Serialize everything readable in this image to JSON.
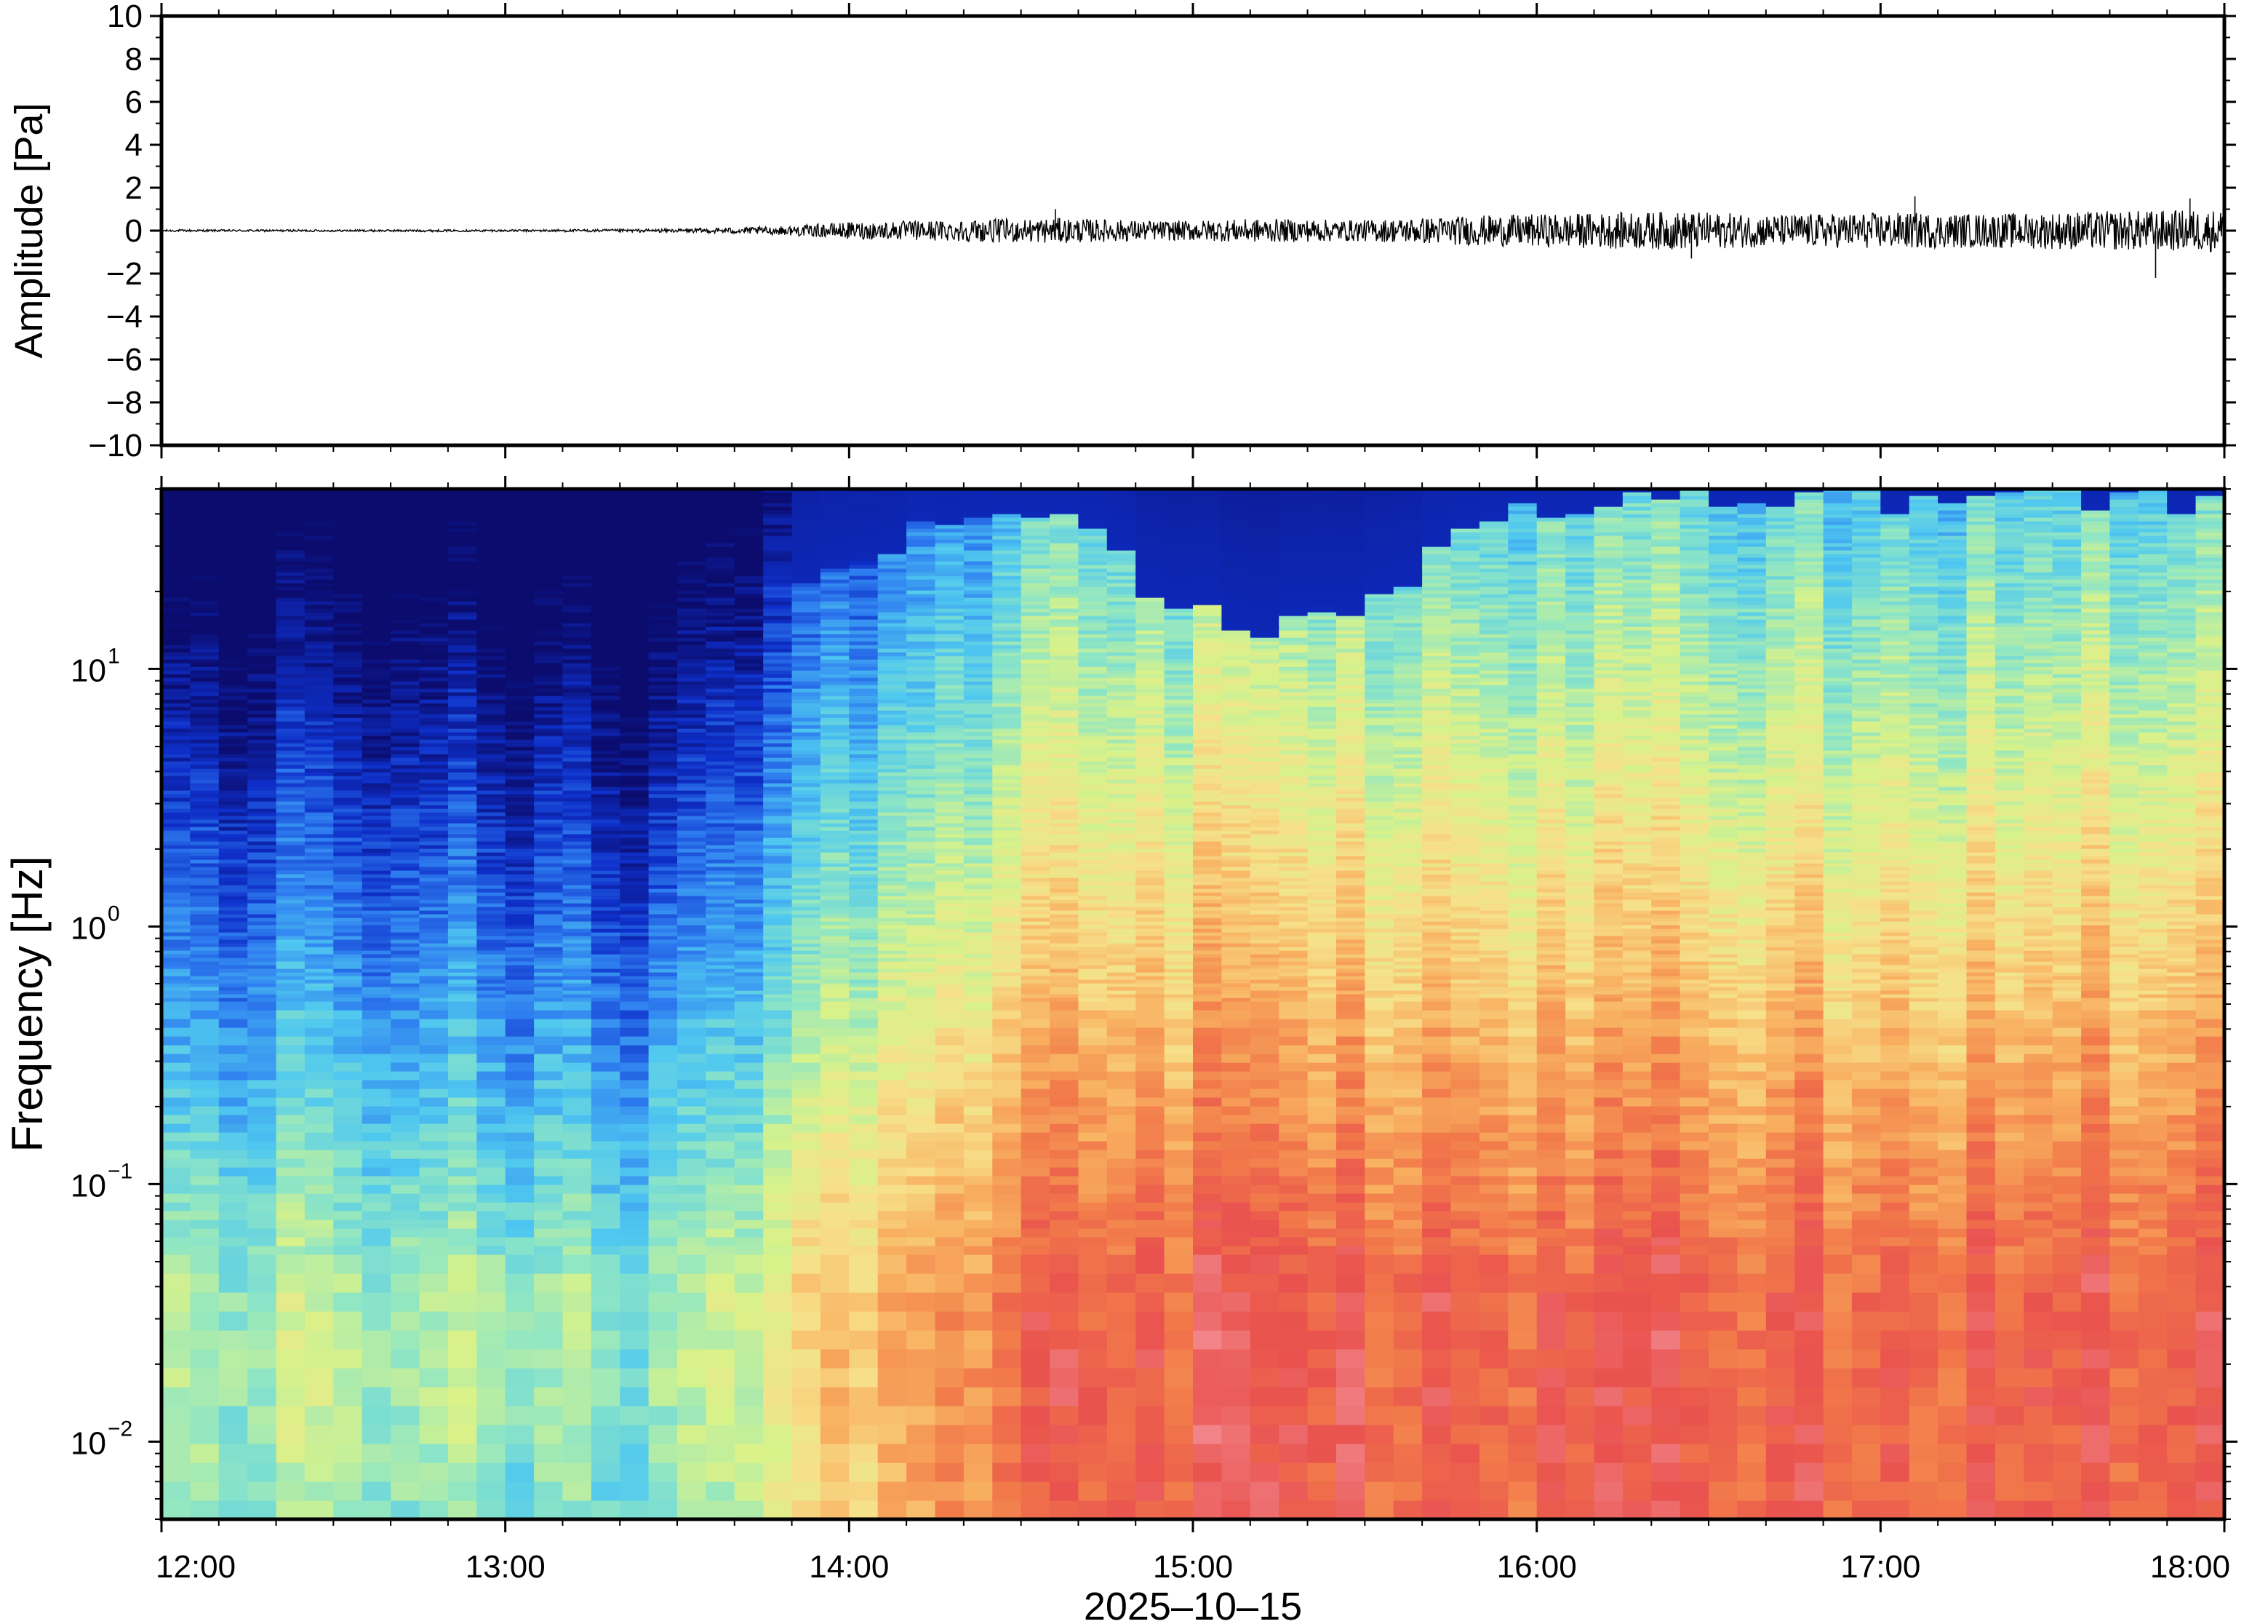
{
  "chart_data": [
    {
      "type": "line",
      "panel": "waveform",
      "ylabel": "Amplitude [Pa]",
      "ylim": [
        -10,
        10
      ],
      "yticks": [
        10,
        8,
        6,
        4,
        2,
        0,
        -2,
        -4,
        -6,
        -8,
        -10
      ],
      "yticklabels": [
        "10",
        "8",
        "6",
        "4",
        "2",
        "0",
        "−2",
        "−4",
        "−6",
        "−8",
        "−10"
      ],
      "xlim_hours": [
        12,
        18
      ],
      "grid": false,
      "series_color": "#000000",
      "envelope": {
        "hours": [
          12.0,
          12.5,
          13.0,
          13.5,
          13.8,
          14.0,
          14.3,
          14.6,
          14.9,
          15.2,
          15.5,
          15.8,
          16.1,
          16.4,
          16.7,
          17.0,
          17.3,
          17.6,
          18.0
        ],
        "amplitude_pa": [
          0.05,
          0.05,
          0.05,
          0.08,
          0.2,
          0.4,
          0.5,
          0.6,
          0.45,
          0.55,
          0.5,
          0.7,
          0.8,
          0.9,
          0.75,
          0.85,
          0.8,
          0.9,
          1.0
        ]
      },
      "spikes": [
        {
          "hour": 14.6,
          "amplitude_pa": 1.0
        },
        {
          "hour": 16.45,
          "amplitude_pa": -1.3
        },
        {
          "hour": 17.1,
          "amplitude_pa": 1.6
        },
        {
          "hour": 17.8,
          "amplitude_pa": -2.2
        },
        {
          "hour": 17.9,
          "amplitude_pa": 1.5
        }
      ]
    },
    {
      "type": "heatmap",
      "panel": "spectrogram",
      "ylabel": "Frequency [Hz]",
      "xlabel": "2025–10–15",
      "yscale": "log",
      "ylim_hz": [
        0.005,
        50
      ],
      "yticks": [
        {
          "value_hz": 10,
          "base": "10",
          "exp": "1"
        },
        {
          "value_hz": 1,
          "base": "10",
          "exp": "0"
        },
        {
          "value_hz": 0.1,
          "base": "10",
          "exp": "−1"
        },
        {
          "value_hz": 0.01,
          "base": "10",
          "exp": "−2"
        }
      ],
      "xticklabels": [
        "12:00",
        "13:00",
        "14:00",
        "15:00",
        "16:00",
        "17:00",
        "18:00"
      ],
      "colormap": [
        "#0b0c6e",
        "#0e2fc9",
        "#2f7ff0",
        "#4fc8f0",
        "#8fe6c4",
        "#d8f28a",
        "#f7e08a",
        "#f8b060",
        "#f27a4a",
        "#e9524e",
        "#f38a90"
      ],
      "time_bins": {
        "start_hour": 12,
        "end_hour": 18,
        "count": 72
      },
      "noise_profile": {
        "hours": [
          12.0,
          12.5,
          13.0,
          13.35,
          13.5,
          13.8,
          14.0,
          14.3,
          14.6,
          14.9,
          15.2,
          15.6,
          15.8,
          16.2,
          16.6,
          17.0,
          17.4,
          17.8,
          18.0
        ],
        "level_at_0.02hz": [
          0.45,
          0.45,
          0.42,
          0.4,
          0.5,
          0.55,
          0.65,
          0.75,
          0.85,
          0.88,
          0.9,
          0.88,
          0.85,
          0.87,
          0.88,
          0.86,
          0.88,
          0.9,
          0.88
        ],
        "high_freq_cutoff_hz": [
          10,
          8,
          12,
          10,
          15,
          20,
          30,
          35,
          40,
          20,
          15,
          18,
          35,
          45,
          45,
          45,
          45,
          45,
          45
        ]
      }
    }
  ]
}
